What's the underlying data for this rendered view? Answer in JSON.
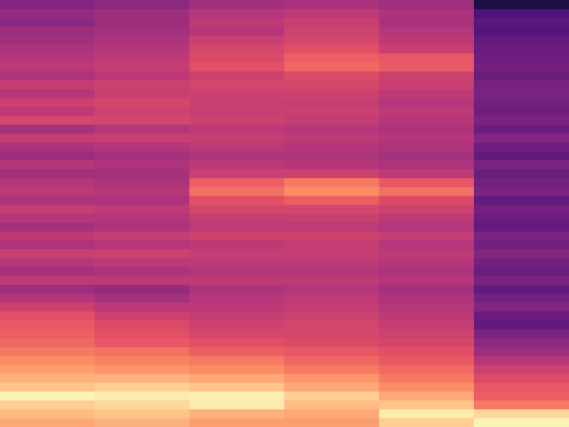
{
  "chart_data": {
    "type": "heatmap",
    "categories": [
      null,
      null,
      null,
      null,
      null,
      null
    ],
    "color": "magma",
    "color_range": [
      0,
      100
    ],
    "grid": false,
    "tick_labels": false,
    "cells": [
      [
        38,
        40,
        45,
        47,
        45,
        12
      ],
      [
        42,
        45,
        50,
        52,
        48,
        25
      ],
      [
        40,
        44,
        52,
        55,
        47,
        28
      ],
      [
        44,
        46,
        50,
        56,
        50,
        26
      ],
      [
        45,
        48,
        55,
        58,
        52,
        30
      ],
      [
        48,
        50,
        58,
        62,
        55,
        32
      ],
      [
        50,
        52,
        60,
        66,
        64,
        33
      ],
      [
        52,
        54,
        62,
        68,
        65,
        34
      ],
      [
        48,
        52,
        56,
        60,
        56,
        32
      ],
      [
        54,
        56,
        58,
        58,
        55,
        35
      ],
      [
        50,
        55,
        56,
        56,
        52,
        36
      ],
      [
        56,
        58,
        55,
        54,
        50,
        34
      ],
      [
        52,
        56,
        55,
        55,
        52,
        33
      ],
      [
        58,
        58,
        56,
        54,
        50,
        36
      ],
      [
        46,
        50,
        52,
        50,
        48,
        32
      ],
      [
        54,
        55,
        54,
        52,
        50,
        38
      ],
      [
        48,
        50,
        52,
        50,
        48,
        33
      ],
      [
        44,
        46,
        48,
        48,
        46,
        30
      ],
      [
        50,
        48,
        52,
        50,
        48,
        36
      ],
      [
        46,
        46,
        55,
        56,
        52,
        32
      ],
      [
        50,
        48,
        66,
        72,
        64,
        34
      ],
      [
        52,
        50,
        70,
        76,
        70,
        36
      ],
      [
        48,
        48,
        62,
        66,
        60,
        30
      ],
      [
        54,
        52,
        58,
        58,
        56,
        34
      ],
      [
        50,
        50,
        54,
        55,
        52,
        32
      ],
      [
        46,
        48,
        52,
        52,
        50,
        30
      ],
      [
        52,
        54,
        56,
        56,
        54,
        36
      ],
      [
        48,
        50,
        52,
        54,
        50,
        34
      ],
      [
        55,
        56,
        54,
        54,
        52,
        38
      ],
      [
        50,
        52,
        52,
        52,
        50,
        34
      ],
      [
        46,
        48,
        50,
        50,
        48,
        32
      ],
      [
        52,
        52,
        52,
        52,
        50,
        36
      ],
      [
        44,
        42,
        48,
        50,
        46,
        30
      ],
      [
        50,
        46,
        50,
        52,
        48,
        34
      ],
      [
        56,
        52,
        52,
        54,
        50,
        38
      ],
      [
        62,
        56,
        54,
        56,
        52,
        32
      ],
      [
        64,
        60,
        56,
        58,
        54,
        30
      ],
      [
        66,
        62,
        58,
        58,
        56,
        36
      ],
      [
        68,
        64,
        62,
        60,
        58,
        40
      ],
      [
        72,
        70,
        66,
        64,
        62,
        44
      ],
      [
        76,
        74,
        72,
        68,
        64,
        50
      ],
      [
        80,
        78,
        76,
        72,
        68,
        56
      ],
      [
        84,
        84,
        82,
        78,
        72,
        60
      ],
      [
        88,
        90,
        88,
        82,
        76,
        64
      ],
      [
        98,
        96,
        97,
        90,
        82,
        66
      ],
      [
        90,
        92,
        96,
        86,
        88,
        72
      ],
      [
        86,
        88,
        84,
        82,
        96,
        92
      ],
      [
        82,
        84,
        80,
        80,
        90,
        98
      ]
    ]
  }
}
